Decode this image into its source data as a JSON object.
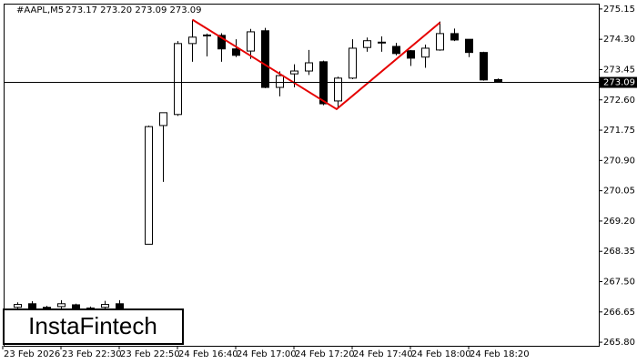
{
  "chart_data": {
    "type": "candlestick",
    "symbol": "#AAPL,M5",
    "header": "273.17 273.20 273.09 273.09",
    "watermark": "InstaFintech",
    "categories": [
      "23 Feb 2026",
      null,
      null,
      null,
      "23 Feb 22:30",
      null,
      null,
      null,
      "23 Feb 22:50",
      null,
      null,
      null,
      "24 Feb 16:40",
      null,
      null,
      null,
      "24 Feb 17:00",
      null,
      null,
      null,
      "24 Feb 17:20",
      null,
      null,
      null,
      "24 Feb 17:40",
      null,
      null,
      null,
      "24 Feb 18:00",
      null,
      null,
      null,
      "24 Feb 18:20",
      null,
      null
    ],
    "open": [
      null,
      266.78,
      266.88,
      266.76,
      266.8,
      266.85,
      266.74,
      266.78,
      266.88,
      null,
      268.55,
      271.88,
      272.19,
      274.18,
      274.4,
      274.41,
      274.03,
      273.97,
      274.54,
      272.95,
      273.33,
      273.41,
      273.67,
      272.57,
      273.21,
      274.07,
      274.22,
      274.1,
      273.98,
      273.8,
      274.0,
      274.46,
      274.3,
      273.93,
      273.17
    ],
    "high": [
      null,
      266.92,
      266.95,
      266.82,
      266.98,
      266.88,
      266.8,
      266.96,
      266.98,
      null,
      271.88,
      272.24,
      274.25,
      274.85,
      274.46,
      274.47,
      274.3,
      274.59,
      274.62,
      273.4,
      273.6,
      274.0,
      273.7,
      273.25,
      274.3,
      274.35,
      274.38,
      274.2,
      274.0,
      274.15,
      274.8,
      274.6,
      274.3,
      273.95,
      273.2
    ],
    "low": [
      null,
      266.72,
      266.7,
      266.72,
      266.74,
      266.72,
      266.68,
      266.72,
      266.7,
      null,
      268.55,
      270.3,
      272.15,
      273.67,
      273.82,
      273.67,
      273.8,
      273.75,
      272.93,
      272.7,
      272.95,
      273.3,
      272.45,
      272.4,
      273.18,
      273.95,
      273.95,
      273.85,
      273.55,
      273.5,
      273.98,
      274.25,
      273.8,
      273.14,
      273.09
    ],
    "close": [
      null,
      266.86,
      266.75,
      266.78,
      266.88,
      266.76,
      266.76,
      266.86,
      266.75,
      null,
      271.85,
      272.24,
      274.18,
      274.36,
      274.42,
      274.03,
      273.85,
      274.51,
      272.95,
      273.28,
      273.41,
      273.64,
      272.49,
      273.21,
      274.05,
      274.26,
      274.2,
      273.9,
      273.77,
      274.05,
      274.46,
      274.28,
      273.93,
      273.16,
      273.09
    ],
    "last_price": 273.09,
    "pattern": {
      "color": "#e60000",
      "x": [
        13,
        22.9,
        30
      ],
      "y": [
        274.85,
        272.34,
        274.77
      ]
    },
    "ylim": [
      265.7,
      275.3
    ],
    "yticks": [
      275.15,
      {
        "value": 274.3,
        "label": "274.30"
      },
      273.45,
      {
        "value": 272.6,
        "label": "272.60"
      },
      271.75,
      {
        "value": 270.9,
        "label": "270.90"
      },
      270.05,
      {
        "value": 269.2,
        "label": "269.20"
      },
      268.35,
      {
        "value": 267.5,
        "label": "267.50"
      },
      266.65,
      {
        "value": 265.8,
        "label": "265.80"
      }
    ]
  }
}
